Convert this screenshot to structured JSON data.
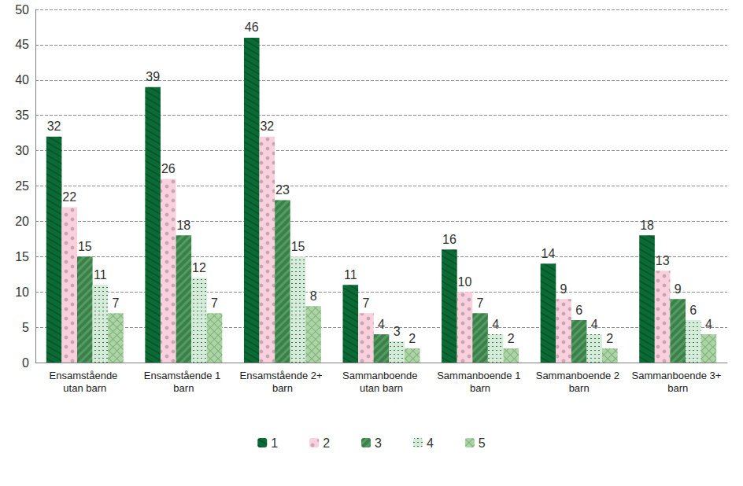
{
  "chart_data": {
    "type": "bar",
    "categories": [
      "Ensamstående utan barn",
      "Ensamstående 1 barn",
      "Ensamstående 2+ barn",
      "Sammanboende utan barn",
      "Sammanboende 1 barn",
      "Sammanboende 2 barn",
      "Sammanboende 3+ barn"
    ],
    "series": [
      {
        "name": "1",
        "color": "#0b6b35",
        "values": [
          32,
          39,
          46,
          11,
          16,
          14,
          18
        ]
      },
      {
        "name": "2",
        "color": "#f9d0dd",
        "values": [
          22,
          26,
          32,
          7,
          10,
          9,
          13
        ]
      },
      {
        "name": "3",
        "color": "#4f9e5f",
        "values": [
          15,
          18,
          23,
          4,
          7,
          6,
          9
        ]
      },
      {
        "name": "4",
        "color": "#d6ebd9",
        "values": [
          11,
          12,
          15,
          3,
          4,
          4,
          6
        ]
      },
      {
        "name": "5",
        "color": "#a9d6a3",
        "values": [
          7,
          7,
          8,
          2,
          2,
          2,
          4
        ]
      }
    ],
    "ylim": [
      0,
      50
    ],
    "yticks": [
      0,
      5,
      10,
      15,
      20,
      25,
      30,
      35,
      40,
      45,
      50
    ],
    "grid": true,
    "legend": "bottom",
    "data_labels": true
  }
}
